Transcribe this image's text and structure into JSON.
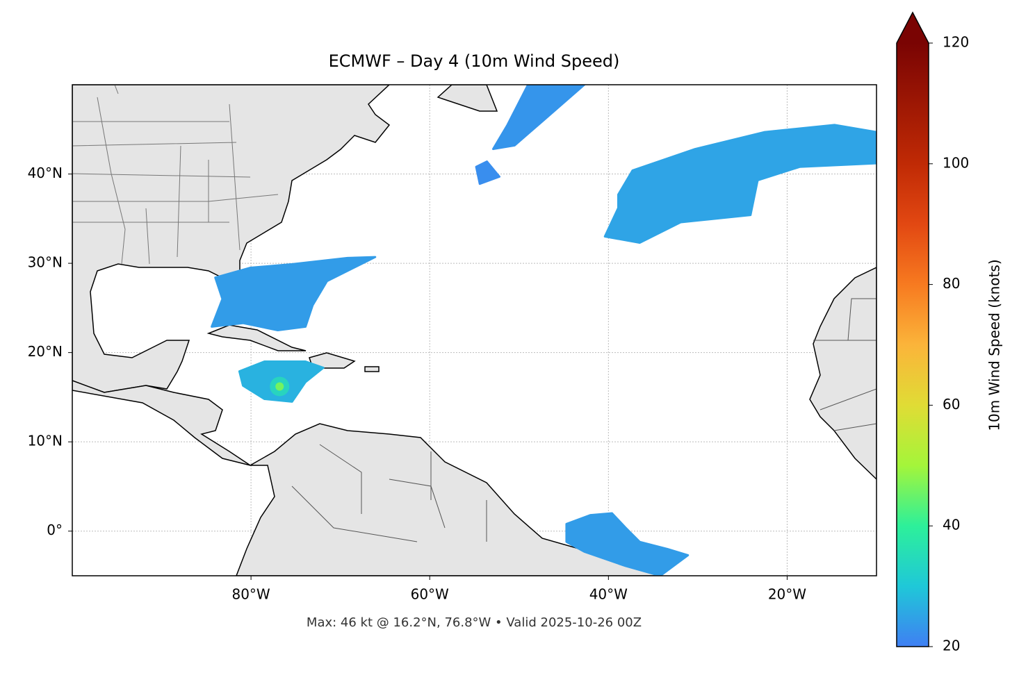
{
  "chart_data": {
    "type": "map",
    "title": "ECMWF – Day 4 (10m Wind Speed)",
    "note": "Max: 46 kt @ 16.2°N, 76.8°W • Valid 2025-10-26 00Z",
    "xlim": [
      -100,
      -10
    ],
    "ylim": [
      -5,
      50
    ],
    "xticks": [
      {
        "value": -80,
        "label": "80°W"
      },
      {
        "value": -60,
        "label": "60°W"
      },
      {
        "value": -40,
        "label": "40°W"
      },
      {
        "value": -20,
        "label": "20°W"
      }
    ],
    "yticks": [
      {
        "value": 0,
        "label": "0°"
      },
      {
        "value": 10,
        "label": "10°N"
      },
      {
        "value": 20,
        "label": "20°N"
      },
      {
        "value": 30,
        "label": "30°N"
      },
      {
        "value": 40,
        "label": "40°N"
      }
    ],
    "grid": true,
    "colorbar_label": "10m Wind Speed (knots)",
    "clim": [
      20,
      120
    ],
    "cticks": [
      20,
      40,
      60,
      80,
      100,
      120
    ],
    "colormap": [
      {
        "value": 20,
        "color": "#3f7ff3"
      },
      {
        "value": 30,
        "color": "#1fc8d8"
      },
      {
        "value": 40,
        "color": "#2df09a"
      },
      {
        "value": 50,
        "color": "#a4f53a"
      },
      {
        "value": 60,
        "color": "#e0dc35"
      },
      {
        "value": 70,
        "color": "#fbb43a"
      },
      {
        "value": 80,
        "color": "#f77a20"
      },
      {
        "value": 90,
        "color": "#e24812"
      },
      {
        "value": 100,
        "color": "#c02a05"
      },
      {
        "value": 120,
        "color": "#7a0403"
      }
    ],
    "wind_areas": [
      {
        "value": 25,
        "lon": [
          -38.9,
          -37.3,
          -30.3,
          -22.5,
          -14.7,
          -10,
          -10,
          -18.6,
          -23.3,
          -24.1,
          -31.9,
          -36.5,
          -40.4,
          -38.9
        ],
        "lat": [
          37.7,
          40.4,
          42.8,
          44.7,
          45.5,
          44.7,
          41.2,
          40.8,
          39.3,
          35.4,
          34.6,
          32.3,
          33.0,
          36.2
        ]
      },
      {
        "value": 23,
        "lon": [
          -51.3,
          -49.0,
          -42.7,
          -47.4,
          -50.5,
          -52.9
        ],
        "lat": [
          45.5,
          50,
          50,
          45.9,
          43.2,
          42.8
        ]
      },
      {
        "value": 22,
        "lon": [
          -54.8,
          -53.6,
          -52.2,
          -54.4
        ],
        "lat": [
          40.8,
          41.4,
          39.7,
          38.9
        ]
      },
      {
        "value": 24,
        "lon": [
          -84.0,
          -80.1,
          -75.4,
          -69.2,
          -66.1,
          -71.5,
          -73.1,
          -73.9,
          -77.0,
          -80.9,
          -84.4,
          -83.2
        ],
        "lat": [
          28.4,
          29.5,
          29.9,
          30.6,
          30.7,
          28.0,
          25.3,
          22.9,
          22.5,
          23.3,
          22.9,
          26.0
        ]
      },
      {
        "value": 27,
        "lon": [
          -81.3,
          -78.5,
          -73.9,
          -71.9,
          -73.9,
          -75.4,
          -78.5,
          -80.9
        ],
        "lat": [
          17.9,
          19.0,
          19.0,
          18.3,
          16.7,
          14.5,
          14.8,
          16.3
        ]
      },
      {
        "value": 24,
        "lon": [
          -44.7,
          -42.0,
          -39.6,
          -38.1,
          -36.5,
          -33.4,
          -31.1,
          -34.2,
          -38.1,
          -42.7,
          -44.7
        ],
        "lat": [
          0.8,
          1.8,
          2.0,
          0.4,
          -1.2,
          -2.0,
          -2.7,
          -5,
          -3.9,
          -2.3,
          -1.2
        ]
      }
    ],
    "max_point": {
      "value": 46,
      "lat": 16.2,
      "lon": -76.8
    }
  }
}
